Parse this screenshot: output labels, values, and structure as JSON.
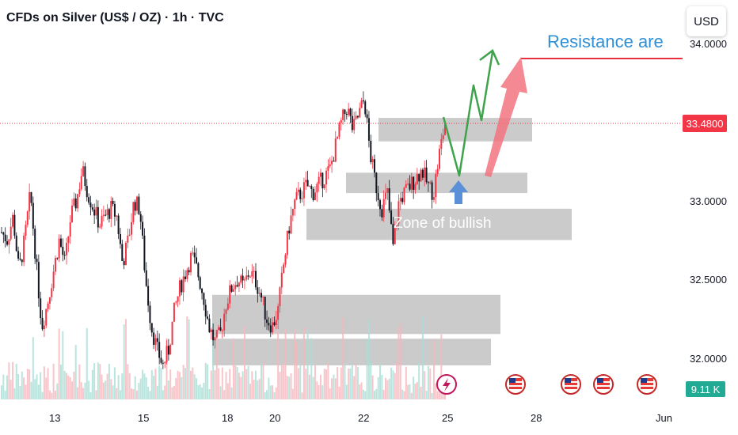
{
  "title": "CFDs on Silver (US$ / OZ) · 1h · TVC",
  "currency_button": "USD",
  "current_price_label": "33.4800",
  "volume_label": "9.11 K",
  "annotations": {
    "resistance": "Resistance are",
    "bullish_zone": "Zone of bullish"
  },
  "colors": {
    "up": "#f23645",
    "down": "#131722",
    "resistance_text": "#2f8fd6",
    "resistance_line": "#e8303f",
    "zones": "#b5b5b5",
    "projection": "#3fa34d",
    "arrow_red": "#f27480",
    "arrow_blue": "#5b8fd8",
    "volume": "#a8ded6"
  },
  "chart_data": {
    "type": "candlestick",
    "x_tick_labels": [
      "13",
      "15",
      "18",
      "20",
      "22",
      "25",
      "28",
      "Jun"
    ],
    "y_tick_labels": [
      "34.0000",
      "33.0000",
      "32.5000",
      "32.0000"
    ],
    "ylim": [
      31.9,
      34.05
    ],
    "current_price": 33.48,
    "resistance_level": 33.95,
    "close_path": [
      32.8,
      32.75,
      32.9,
      32.55,
      32.75,
      33.05,
      32.6,
      32.2,
      32.35,
      32.55,
      32.75,
      32.6,
      32.9,
      33.0,
      33.2,
      33.05,
      32.95,
      32.85,
      32.9,
      32.95,
      32.9,
      32.6,
      32.75,
      33.0,
      32.95,
      32.5,
      32.2,
      32.05,
      31.95,
      32.05,
      32.3,
      32.45,
      32.55,
      32.65,
      32.55,
      32.4,
      32.2,
      32.1,
      32.15,
      32.35,
      32.45,
      32.5,
      32.45,
      32.55,
      32.5,
      32.4,
      32.25,
      32.2,
      32.3,
      32.6,
      32.85,
      33.0,
      33.05,
      33.1,
      33.05,
      33.1,
      33.15,
      33.2,
      33.35,
      33.5,
      33.6,
      33.45,
      33.55,
      33.65,
      33.3,
      33.1,
      32.95,
      33.05,
      32.7,
      33.0,
      33.05,
      33.1,
      33.15,
      33.2,
      33.1,
      33.05,
      33.3,
      33.5
    ],
    "series": [
      {
        "name": "",
        "type": "projection",
        "values": [
          33.5,
          33.18,
          33.62,
          33.48,
          33.96
        ]
      }
    ],
    "zones": [
      {
        "from": 33.38,
        "to": 33.53
      },
      {
        "from": 33.05,
        "to": 33.18
      },
      {
        "from": 32.75,
        "to": 32.95
      },
      {
        "from": 32.15,
        "to": 32.4
      },
      {
        "from": 31.95,
        "to": 32.12
      }
    ],
    "grid": false,
    "legend": "none"
  }
}
